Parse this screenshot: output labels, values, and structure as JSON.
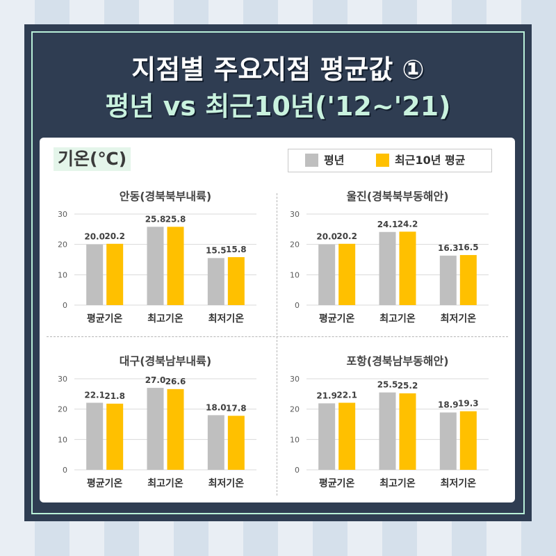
{
  "title_line1": "지점별 주요지점 평균값 ①",
  "title_line2": "평년 vs 최근10년('12~'21)",
  "unit_label": "기온(℃)",
  "legend": [
    {
      "label": "평년",
      "color": "#bfbfbf"
    },
    {
      "label": "최근10년 평균",
      "color": "#ffc000"
    }
  ],
  "colors": {
    "normal": "#bfbfbf",
    "recent": "#ffc000",
    "frame": "#2f3d52",
    "accent": "#c9f2de"
  },
  "chart_data": [
    {
      "type": "bar",
      "title": "안동(경북북부내륙)",
      "categories": [
        "평균기온",
        "최고기온",
        "최저기온"
      ],
      "series": [
        {
          "name": "평년",
          "values": [
            20.0,
            25.8,
            15.5
          ]
        },
        {
          "name": "최근10년 평균",
          "values": [
            20.2,
            25.8,
            15.8
          ]
        }
      ],
      "yticks": [
        "0",
        "10",
        "20",
        "30"
      ],
      "ylim": [
        0,
        30
      ],
      "grid": true,
      "legend": "top-right"
    },
    {
      "type": "bar",
      "title": "울진(경북북부동해안)",
      "categories": [
        "평균기온",
        "최고기온",
        "최저기온"
      ],
      "series": [
        {
          "name": "평년",
          "values": [
            20.0,
            24.1,
            16.3
          ]
        },
        {
          "name": "최근10년 평균",
          "values": [
            20.2,
            24.2,
            16.5
          ]
        }
      ],
      "yticks": [
        "0",
        "10",
        "20",
        "30"
      ],
      "ylim": [
        0,
        30
      ],
      "grid": true,
      "legend": "top-right"
    },
    {
      "type": "bar",
      "title": "대구(경북남부내륙)",
      "categories": [
        "평균기온",
        "최고기온",
        "최저기온"
      ],
      "series": [
        {
          "name": "평년",
          "values": [
            22.1,
            27.0,
            18.0
          ]
        },
        {
          "name": "최근10년 평균",
          "values": [
            21.8,
            26.6,
            17.8
          ]
        }
      ],
      "yticks": [
        "0",
        "10",
        "20",
        "30"
      ],
      "ylim": [
        0,
        30
      ],
      "grid": true,
      "legend": "top-right"
    },
    {
      "type": "bar",
      "title": "포항(경북남부동해안)",
      "categories": [
        "평균기온",
        "최고기온",
        "최저기온"
      ],
      "series": [
        {
          "name": "평년",
          "values": [
            21.9,
            25.5,
            18.9
          ]
        },
        {
          "name": "최근10년 평균",
          "values": [
            22.1,
            25.2,
            19.3
          ]
        }
      ],
      "yticks": [
        "0",
        "10",
        "20",
        "30"
      ],
      "ylim": [
        0,
        30
      ],
      "grid": true,
      "legend": "top-right"
    }
  ]
}
